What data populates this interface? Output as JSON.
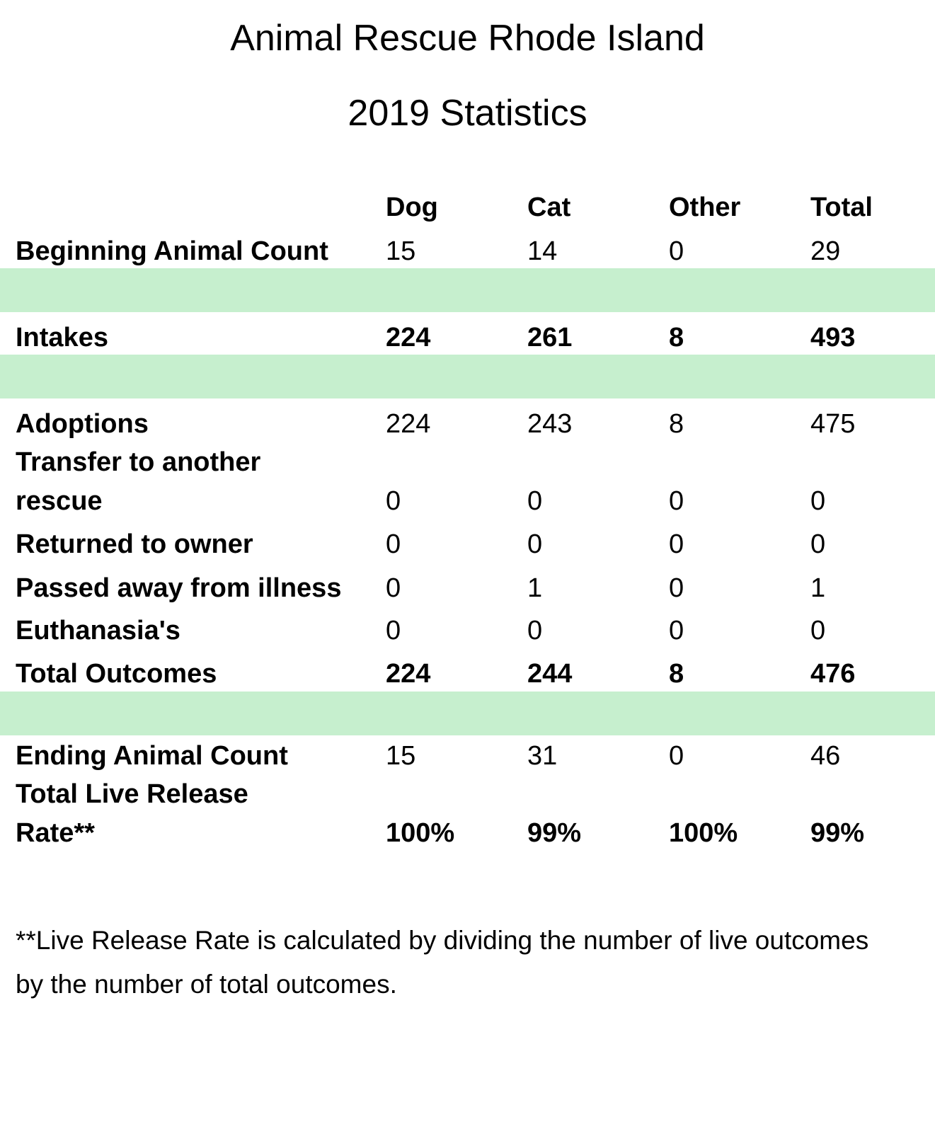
{
  "title": "Animal Rescue Rhode Island",
  "subtitle": "2019 Statistics",
  "headers": {
    "dog": "Dog",
    "cat": "Cat",
    "other": "Other",
    "total": "Total"
  },
  "rows": {
    "beginning": {
      "label": "Beginning Animal Count",
      "dog": "15",
      "cat": "14",
      "other": "0",
      "total": "29"
    },
    "intakes": {
      "label": "Intakes",
      "dog": "224",
      "cat": "261",
      "other": "8",
      "total": "493"
    },
    "adoptions": {
      "label": "Adoptions",
      "dog": "224",
      "cat": "243",
      "other": "8",
      "total": "475"
    },
    "transfer": {
      "label_line1": "Transfer to another",
      "label_line2": "rescue",
      "dog": "0",
      "cat": "0",
      "other": "0",
      "total": "0"
    },
    "returned": {
      "label": "Returned to owner",
      "dog": "0",
      "cat": "0",
      "other": "0",
      "total": "0"
    },
    "passed": {
      "label": "Passed away from illness",
      "dog": "0",
      "cat": "1",
      "other": "0",
      "total": "1"
    },
    "euthanasia": {
      "label": "Euthanasia's",
      "dog": "0",
      "cat": "0",
      "other": "0",
      "total": "0"
    },
    "total_outcomes": {
      "label": "Total Outcomes",
      "dog": "224",
      "cat": "244",
      "other": "8",
      "total": "476"
    },
    "ending": {
      "label": "Ending Animal Count",
      "dog": "15",
      "cat": "31",
      "other": "0",
      "total": "46"
    },
    "live_release": {
      "label_line1": "Total Live Release",
      "label_line2": "Rate**",
      "dog": "100%",
      "cat": "99%",
      "other": "100%",
      "total": "99%"
    }
  },
  "band_color": "#c6efce",
  "footnote": "**Live Release Rate is calculated by dividing the number of live outcomes by the number of total outcomes."
}
